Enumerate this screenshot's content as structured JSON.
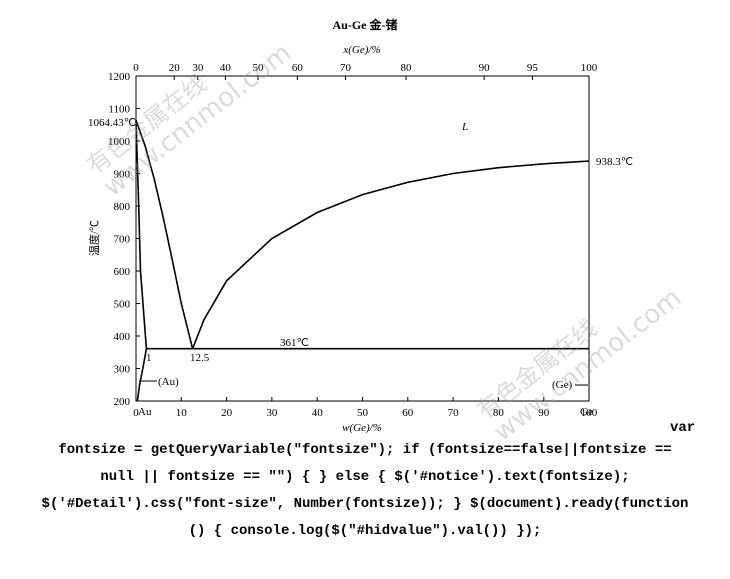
{
  "chart_data": {
    "type": "line",
    "title": "Au-Ge  金-锗",
    "x_label": "w(Ge)/%",
    "x2_label": "x(Ge)/%",
    "y_label": "温度/℃",
    "xlim": [
      0,
      100
    ],
    "xticks": [
      0,
      10,
      20,
      30,
      40,
      50,
      60,
      70,
      80,
      90,
      100
    ],
    "x2ticks": [
      0,
      20,
      30,
      40,
      50,
      60,
      70,
      80,
      90,
      95,
      100
    ],
    "ylim": [
      200,
      1200
    ],
    "yticks": [
      200,
      300,
      400,
      500,
      600,
      700,
      800,
      900,
      1000,
      1100,
      1200
    ],
    "color": "#000000",
    "curves": [
      {
        "x": [
          0,
          2,
          4,
          6,
          8,
          10,
          12.5
        ],
        "values": [
          1064.43,
          985,
          885,
          765,
          635,
          500,
          361
        ]
      },
      {
        "x": [
          12.5,
          15,
          20,
          30,
          40,
          50,
          60,
          70,
          80,
          90,
          100
        ],
        "values": [
          361,
          450,
          570,
          700,
          780,
          835,
          873,
          900,
          918,
          930,
          938.3
        ]
      },
      {
        "x": [
          0,
          0.6,
          1,
          2.3
        ],
        "values": [
          1064.43,
          800,
          600,
          361
        ]
      },
      {
        "x": [
          2.3,
          1.5,
          0.8,
          0.3
        ],
        "values": [
          361,
          300,
          250,
          200
        ]
      },
      {
        "x": [
          2.3,
          100
        ],
        "values": [
          361,
          361
        ]
      }
    ],
    "annotations": [
      "1064.43℃",
      "938.3℃",
      "361℃",
      "1",
      "12.5",
      "L",
      "(Au)",
      "(Ge)",
      "Au",
      "Ge"
    ]
  },
  "watermarks": [
    [
      "有色金属在线",
      "www.cnnmol.com"
    ],
    [
      "有色金属在线",
      "www.cnnmol.com"
    ]
  ],
  "code_lines": [
    "var",
    "fontsize = getQueryVariable(\"fontsize\"); if (fontsize==false||fontsize ==",
    "null || fontsize == \"\") { } else { $('#notice').text(fontsize);",
    "$('#Detail').css(\"font-size\", Number(fontsize)); } $(document).ready(function",
    "() { console.log($(\"#hidvalue\").val()) });"
  ]
}
